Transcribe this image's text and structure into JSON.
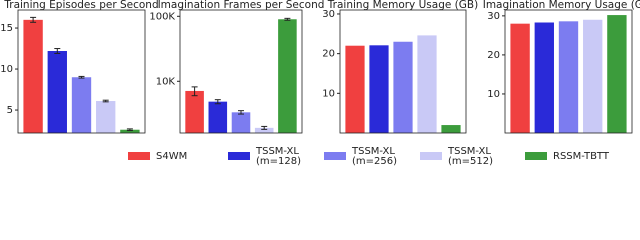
{
  "chart_data": [
    {
      "type": "bar",
      "title": "Training Episodes per Second",
      "values": [
        16,
        12.2,
        9,
        6.1,
        2.6
      ],
      "errors": [
        0.3,
        0.3,
        0.1,
        0.1,
        0.1
      ],
      "ylim": [
        2.2,
        17.2
      ],
      "yticks": [
        5,
        10,
        15
      ]
    },
    {
      "type": "bar",
      "title": "Imagination Frames per Second",
      "log": true,
      "values": [
        7100,
        4860,
        3330,
        1920,
        90000
      ],
      "errors": [
        1100,
        350,
        200,
        100,
        3000
      ],
      "ylim": [
        1600,
        125000
      ],
      "yticks": [
        {
          "value": 10000,
          "label": "10K"
        },
        {
          "value": 100000,
          "label": "100K"
        }
      ]
    },
    {
      "type": "bar",
      "title": "Training Memory Usage (GB)",
      "values": [
        22,
        22.1,
        23,
        24.6,
        2
      ],
      "errors": [
        0,
        0,
        0,
        0,
        0
      ],
      "ylim": [
        0,
        31
      ],
      "yticks": [
        10,
        20,
        30
      ]
    },
    {
      "type": "bar",
      "title": "Imagination Memory Usage (GB)",
      "values": [
        28,
        28.3,
        28.6,
        29,
        30.2
      ],
      "errors": [
        0,
        0,
        0,
        0,
        0
      ],
      "ylim": [
        0,
        31.5
      ],
      "yticks": [
        10,
        20,
        30
      ]
    }
  ],
  "legend": [
    {
      "name": [
        "S4WM"
      ],
      "color": "#f04040"
    },
    {
      "name": [
        "TSSM-XL",
        "(m=128)"
      ],
      "color": "#2a2ad8"
    },
    {
      "name": [
        "TSSM-XL",
        "(m=256)"
      ],
      "color": "#7c7cf0"
    },
    {
      "name": [
        "TSSM-XL",
        "(m=512)"
      ],
      "color": "#c9c9f6"
    },
    {
      "name": [
        "RSSM-TBTT"
      ],
      "color": "#3c9c3c"
    }
  ]
}
